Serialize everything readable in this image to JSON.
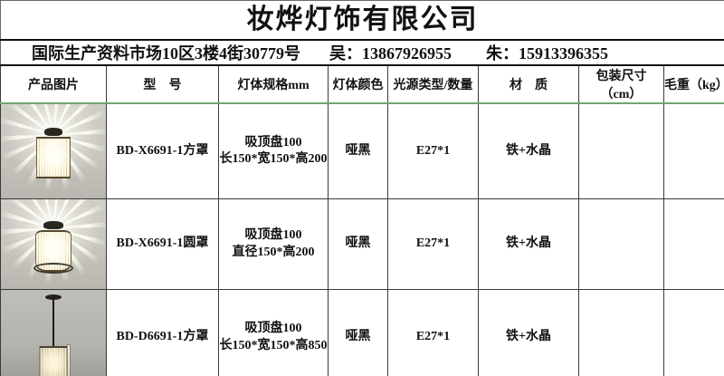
{
  "company": {
    "title": "妆烨灯饰有限公司"
  },
  "contact_row": {
    "address": "国际生产资料市场10区3楼4街30779号",
    "contact1": {
      "label": "吴：",
      "phone": "13867926955"
    },
    "contact2": {
      "label": "朱：",
      "phone": "15913396355"
    }
  },
  "table": {
    "headers": [
      "产品图片",
      "型　号",
      "灯体规格mm",
      "灯体颜色",
      "光源类型/数量",
      "材　质",
      "包装尺寸（cm）",
      "毛重（kg）"
    ],
    "rows": [
      {
        "image_alt": "square-crystal-flush-ceiling-lamp-lit",
        "model": "BD-X6691-1方罩",
        "spec": [
          "吸顶盘100",
          "长150*宽150*高200"
        ],
        "color": "哑黑",
        "light_source": "E27*1",
        "material": "铁+水晶",
        "package_size": "",
        "gross_weight": ""
      },
      {
        "image_alt": "round-crystal-flush-ceiling-lamp-lit",
        "model": "BD-X6691-1圆罩",
        "spec": [
          "吸顶盘100",
          "直径150*高200"
        ],
        "color": "哑黑",
        "light_source": "E27*1",
        "material": "铁+水晶",
        "package_size": "",
        "gross_weight": ""
      },
      {
        "image_alt": "square-crystal-pendant-lamp",
        "model": "BD-D6691-1方罩",
        "spec": [
          "吸顶盘100",
          "长150*宽150*高850"
        ],
        "color": "哑黑",
        "light_source": "E27*1",
        "material": "铁+水晶",
        "package_size": "",
        "gross_weight": ""
      }
    ]
  },
  "colors": {
    "grid_line": "#3a3a3a",
    "header_underline_green": "#6fa56f",
    "photo_background": "#c7c5bd",
    "text": "#111111"
  }
}
